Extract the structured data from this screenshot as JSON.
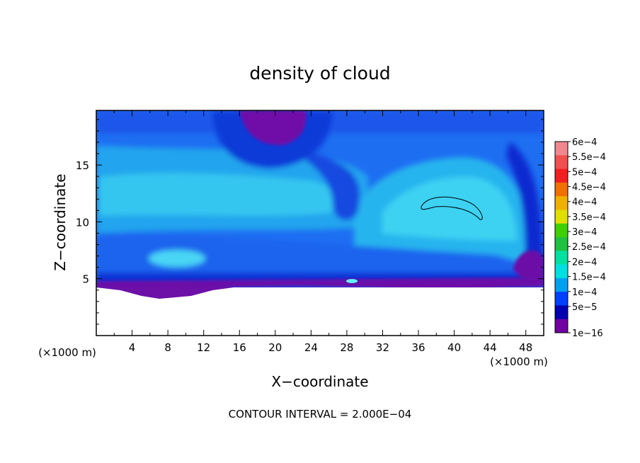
{
  "chart_data": {
    "type": "heatmap",
    "title": "density of cloud",
    "xlabel": "X−coordinate",
    "ylabel": "Z−coordinate",
    "x_unit": "(×1000 m)",
    "y_unit": "(×1000 m)",
    "xlim": [
      0,
      50
    ],
    "ylim": [
      0,
      19.8
    ],
    "x_ticks": [
      4,
      8,
      12,
      16,
      20,
      24,
      28,
      32,
      36,
      40,
      44,
      48
    ],
    "y_ticks": [
      5,
      10,
      15
    ],
    "contour_interval_text": "CONTOUR INTERVAL = 2.000E−04",
    "colorbar": {
      "labels": [
        "6e−4",
        "5.5e−4",
        "5e−4",
        "4.5e−4",
        "4e−4",
        "3.5e−4",
        "3e−4",
        "2.5e−4",
        "2e−4",
        "1.5e−4",
        "1e−4",
        "5e−5",
        "1e−16"
      ],
      "values": [
        0.0006,
        0.00055,
        0.0005,
        0.00045,
        0.0004,
        0.00035,
        0.0003,
        0.00025,
        0.0002,
        0.00015,
        0.0001,
        5e-05,
        1e-16
      ],
      "colors": [
        "#f08890",
        "#f05050",
        "#f02020",
        "#f07000",
        "#f0b000",
        "#e0e000",
        "#40d000",
        "#20c040",
        "#00e0a0",
        "#00e0e0",
        "#00a0f0",
        "#0040ff",
        "#0000b0",
        "#7000a0"
      ]
    }
  }
}
